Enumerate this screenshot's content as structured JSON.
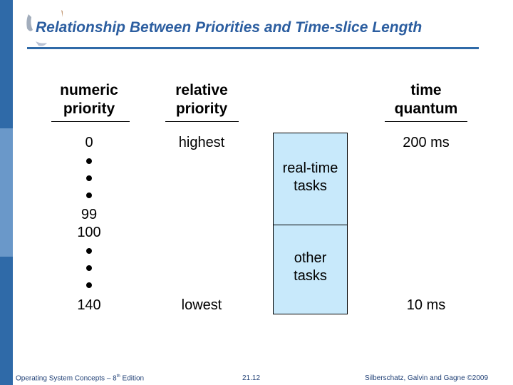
{
  "slide": {
    "title": "Relationship Between Priorities and Time-slice Length"
  },
  "headers": {
    "numeric_line1": "numeric",
    "numeric_line2": "priority",
    "relative_line1": "relative",
    "relative_line2": "priority",
    "quantum_line1": "time",
    "quantum_line2": "quantum"
  },
  "numeric_values": {
    "top": "0",
    "mid_a": "99",
    "mid_b": "100",
    "bottom": "140"
  },
  "relative_values": {
    "top": "highest",
    "bottom": "lowest"
  },
  "quantum_values": {
    "top": "200 ms",
    "bottom": "10 ms"
  },
  "boxes": {
    "realtime_line1": "real-time",
    "realtime_line2": "tasks",
    "other_line1": "other",
    "other_line2": "tasks"
  },
  "footer": {
    "left_before": "Operating System Concepts – 8",
    "left_sup": "th",
    "left_after": " Edition",
    "center": "21.12",
    "right": "Silberschatz, Galvin and Gagne ©2009"
  },
  "colors": {
    "title": "#2c5ea0",
    "sidebar": "#2f6aa8",
    "box_fill": "#c8e9fb"
  }
}
